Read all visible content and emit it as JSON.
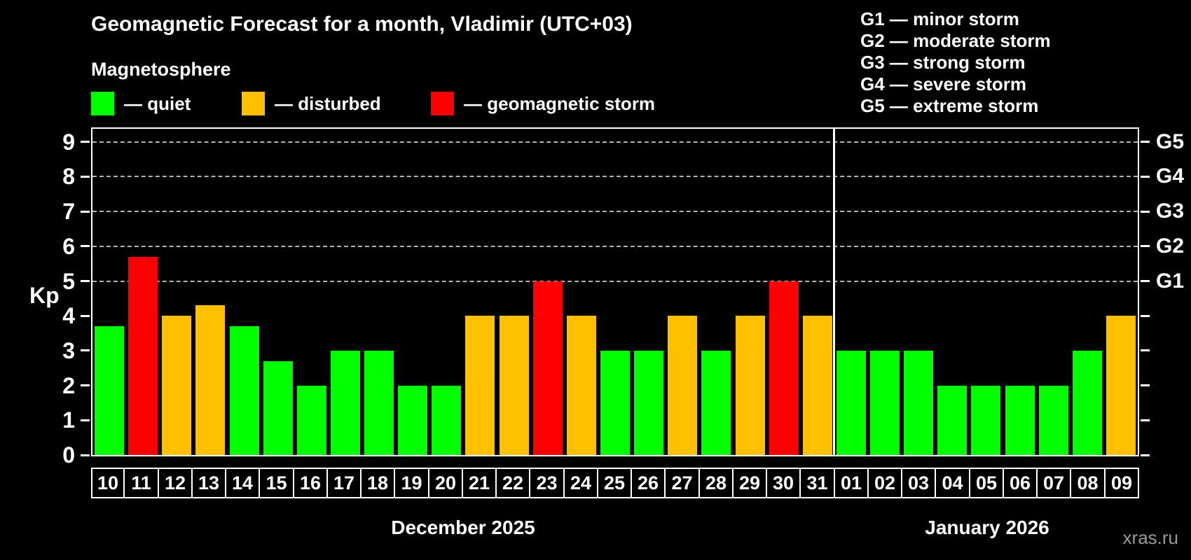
{
  "title": "Geomagnetic Forecast for a month, Vladimir (UTC+03)",
  "subtitle": "Magnetosphere",
  "legend": [
    {
      "name": "quiet",
      "label": "— quiet",
      "color": "#00ff00"
    },
    {
      "name": "disturbed",
      "label": "— disturbed",
      "color": "#ffc000"
    },
    {
      "name": "storm",
      "label": "— geomagnetic storm",
      "color": "#ff0000"
    }
  ],
  "storm_scale_legend": [
    "G1 — minor storm",
    "G2 — moderate storm",
    "G3 — strong storm",
    "G4 — severe storm",
    "G5 — extreme storm"
  ],
  "axis": {
    "y_label": "Kp",
    "y_ticks": [
      0,
      1,
      2,
      3,
      4,
      5,
      6,
      7,
      8,
      9
    ],
    "right_g_labels": {
      "5": "G1",
      "6": "G2",
      "7": "G3",
      "8": "G4",
      "9": "G5"
    }
  },
  "months": [
    {
      "label": "December 2025",
      "days": 22
    },
    {
      "label": "January 2026",
      "days": 9
    }
  ],
  "watermark": "xras.ru",
  "colors": {
    "quiet": "#00ff00",
    "disturbed": "#ffc000",
    "storm": "#ff0000",
    "grid": "#b2b2b2",
    "axis": "#ffffff",
    "background": "#000000"
  },
  "chart_data": {
    "type": "bar",
    "title": "Geomagnetic Forecast for a month, Vladimir (UTC+03)",
    "xlabel": "",
    "ylabel": "Kp",
    "ylim": [
      0,
      9.4
    ],
    "grid_kp_levels": [
      5,
      6,
      7,
      8,
      9
    ],
    "legend_position": "top",
    "categories": [
      "10",
      "11",
      "12",
      "13",
      "14",
      "15",
      "16",
      "17",
      "18",
      "19",
      "20",
      "21",
      "22",
      "23",
      "24",
      "25",
      "26",
      "27",
      "28",
      "29",
      "30",
      "31",
      "01",
      "02",
      "03",
      "04",
      "05",
      "06",
      "07",
      "08",
      "09"
    ],
    "values": [
      3.7,
      5.7,
      4,
      4.3,
      3.7,
      2.7,
      2,
      3,
      3,
      2,
      2,
      4,
      4,
      5,
      4,
      3,
      3,
      4,
      3,
      4,
      5,
      4,
      3,
      3,
      3,
      2,
      2,
      2,
      2,
      3,
      4
    ],
    "statuses": [
      "quiet",
      "storm",
      "disturbed",
      "disturbed",
      "quiet",
      "quiet",
      "quiet",
      "quiet",
      "quiet",
      "quiet",
      "quiet",
      "disturbed",
      "disturbed",
      "storm",
      "disturbed",
      "quiet",
      "quiet",
      "disturbed",
      "quiet",
      "disturbed",
      "storm",
      "disturbed",
      "quiet",
      "quiet",
      "quiet",
      "quiet",
      "quiet",
      "quiet",
      "quiet",
      "quiet",
      "disturbed"
    ]
  }
}
